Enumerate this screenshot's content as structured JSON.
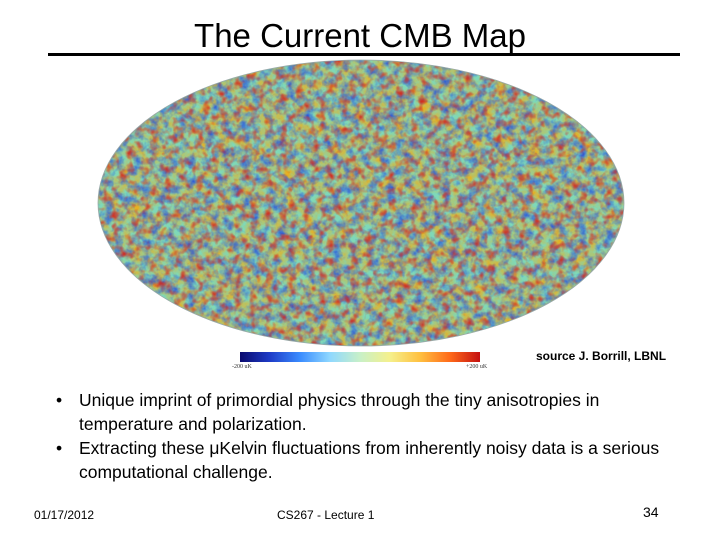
{
  "slide": {
    "title": "The Current CMB Map",
    "source_credit": "source J. Borrill, LBNL",
    "colorbar": {
      "min_label": "-200 uK",
      "max_label": "+200 uK"
    },
    "bullets": [
      "Unique imprint of primordial physics through the tiny anisotropies in temperature and polarization.",
      "Extracting these μKelvin fluctuations from inherently noisy data is a serious computational challenge."
    ],
    "footer": {
      "date": "01/17/2012",
      "course": "CS267 - Lecture 1",
      "page": "34"
    }
  }
}
